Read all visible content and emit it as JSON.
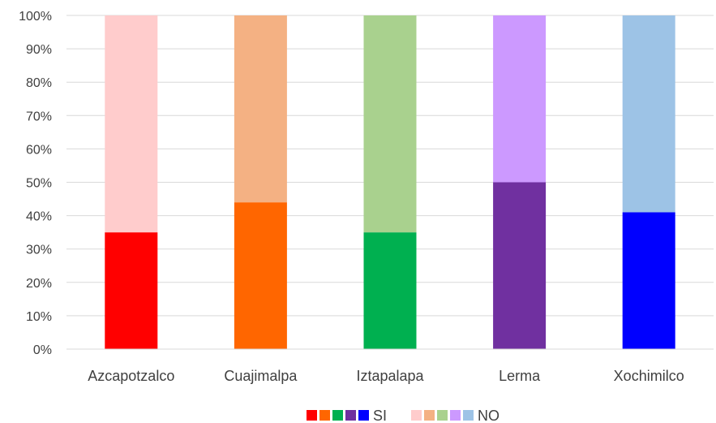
{
  "chart_data": {
    "type": "bar",
    "stacked": true,
    "normalized": true,
    "categories": [
      "Azcapotzalco",
      "Cuajimalpa",
      "Iztapalapa",
      "Lerma",
      "Xochimilco"
    ],
    "series": [
      {
        "name": "SI",
        "values": [
          35,
          44,
          35,
          50,
          41
        ],
        "colors": [
          "#ff0000",
          "#ff6600",
          "#00b050",
          "#7030a0",
          "#0000ff"
        ]
      },
      {
        "name": "NO",
        "values": [
          65,
          56,
          65,
          50,
          59
        ],
        "colors": [
          "#ffcccc",
          "#f4b183",
          "#a9d18e",
          "#cc99ff",
          "#9dc3e6"
        ]
      }
    ],
    "y_ticks": [
      "0%",
      "10%",
      "20%",
      "30%",
      "40%",
      "50%",
      "60%",
      "70%",
      "80%",
      "90%",
      "100%"
    ],
    "ylim": [
      0,
      100
    ],
    "grid": true,
    "legend_position": "bottom"
  }
}
